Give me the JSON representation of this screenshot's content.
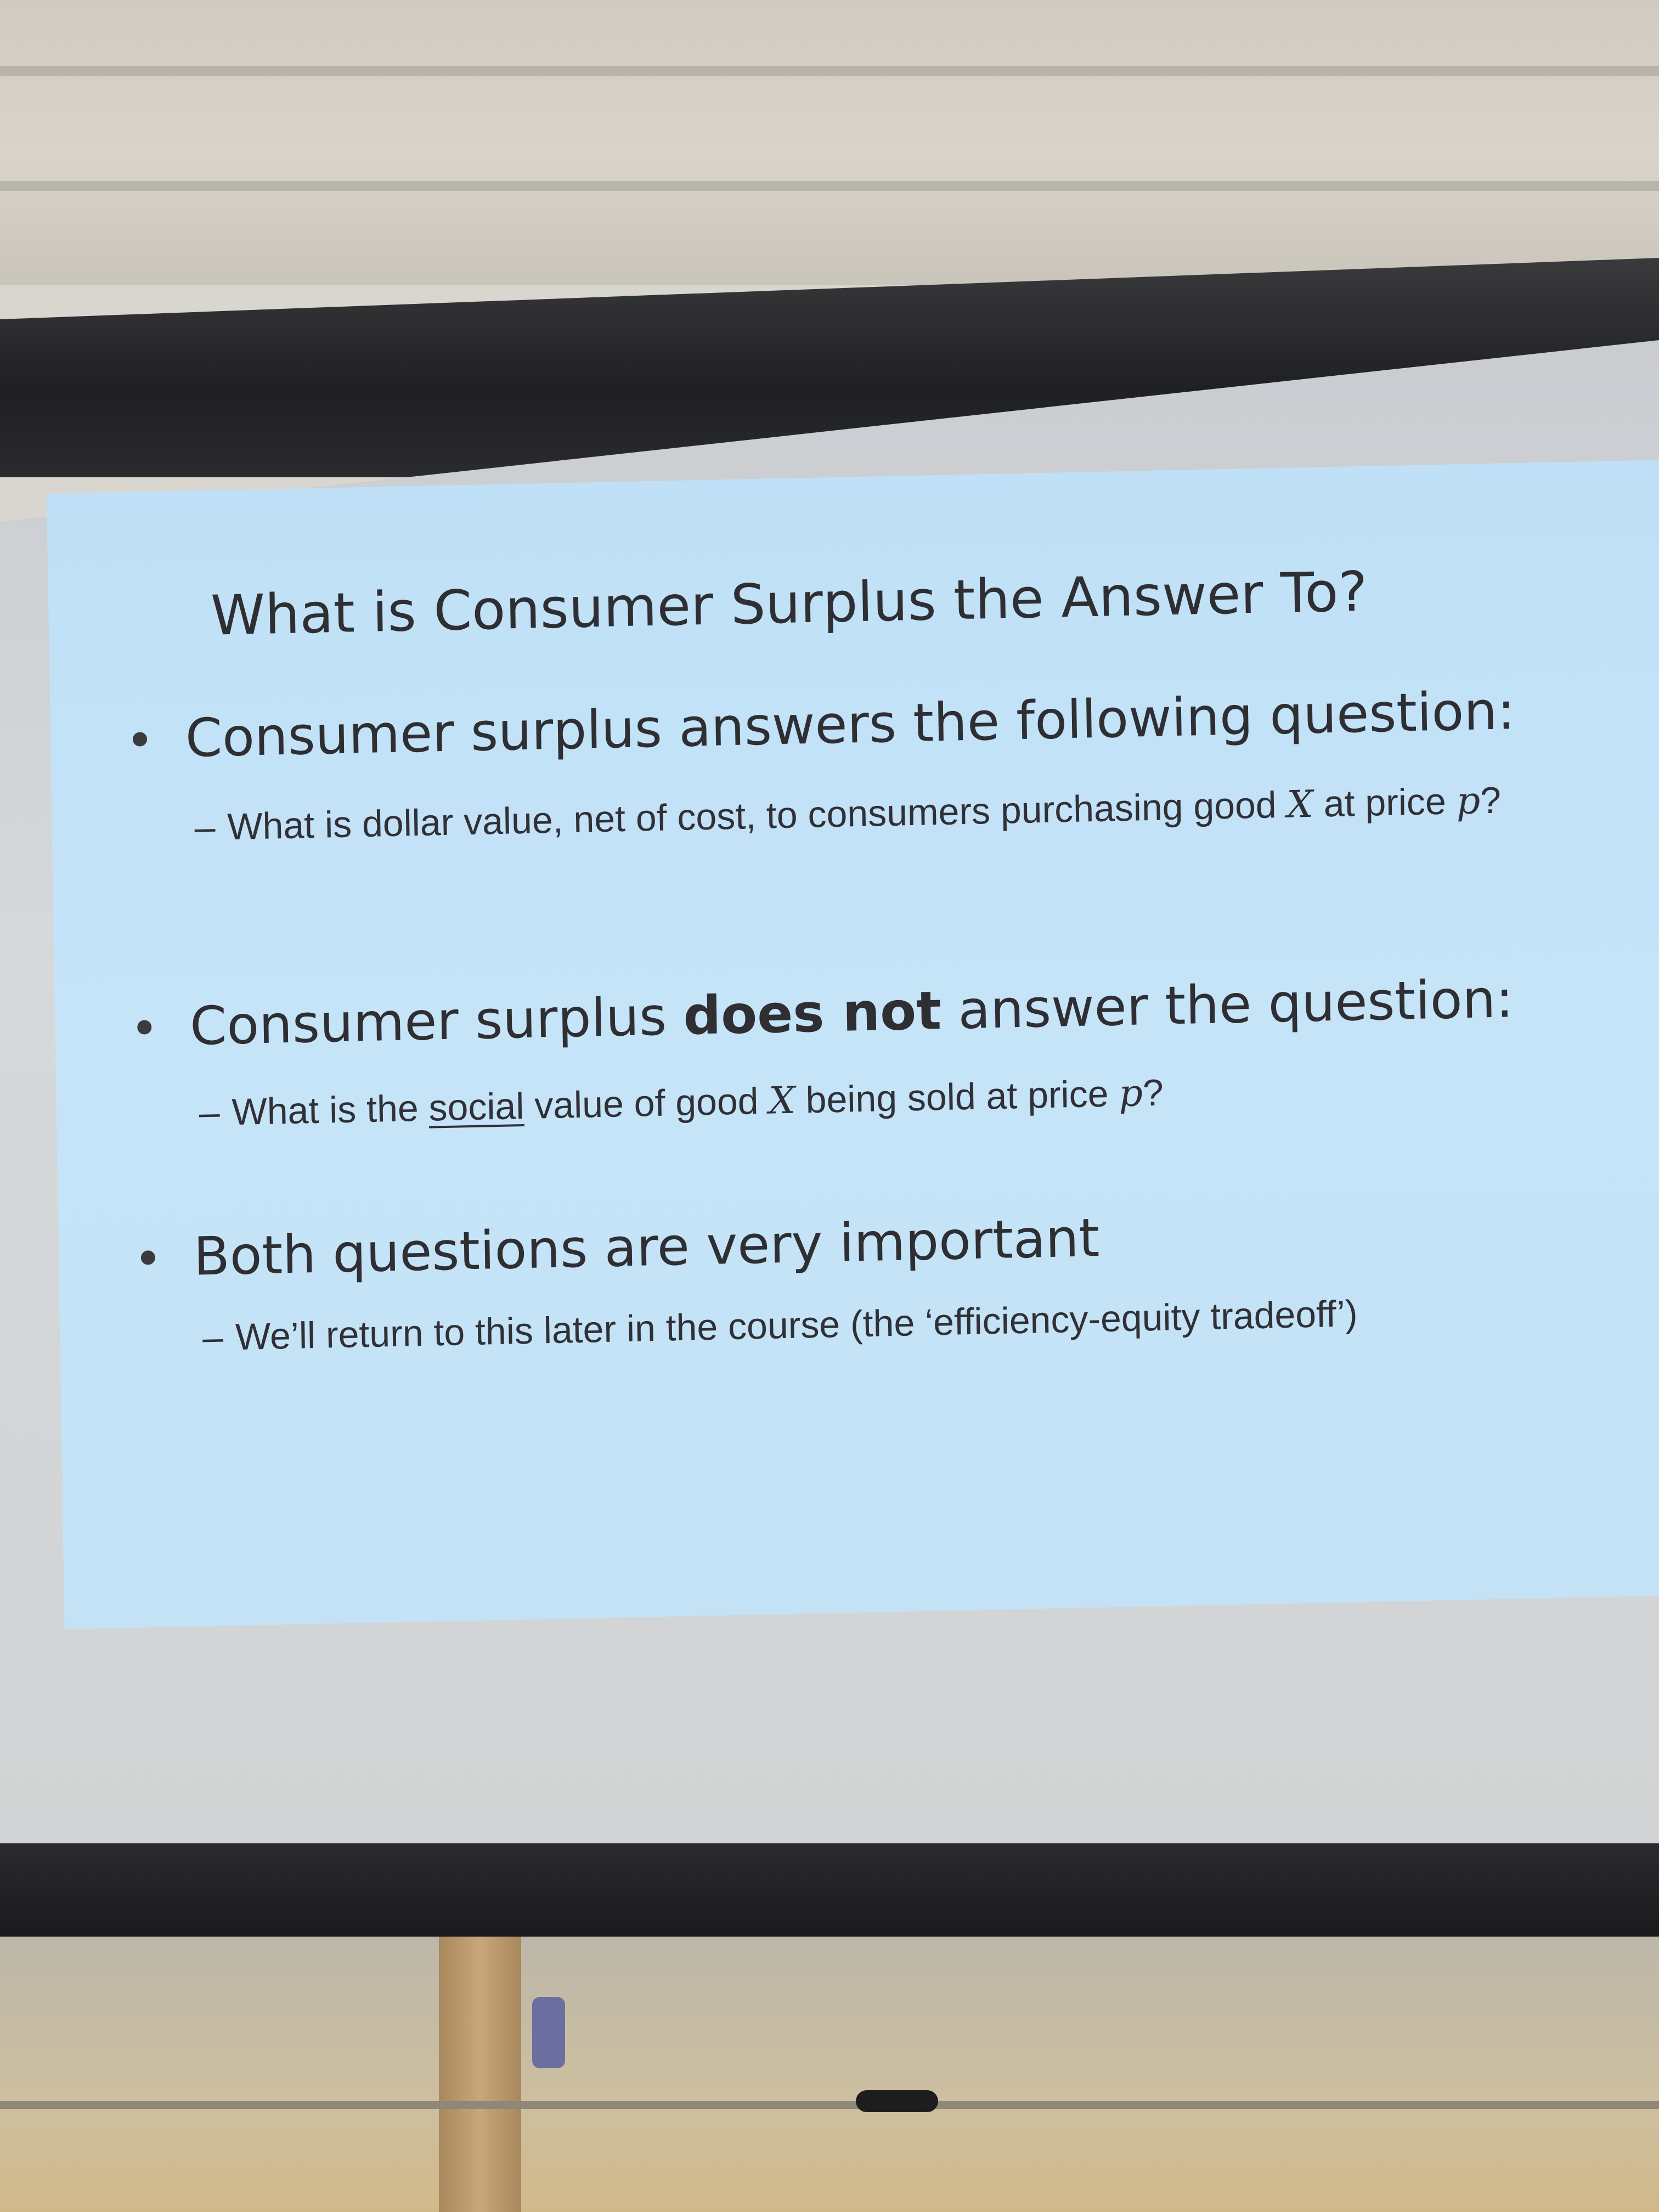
{
  "slide": {
    "title": "What is Consumer Surplus the Answer To?",
    "bullets": [
      {
        "text": "Consumer surplus answers the following question:",
        "sub": {
          "dash": "–",
          "before": "What is dollar value, net of cost, to consumers purchasing good ",
          "var1": "X",
          "middle": " at price ",
          "var2": "p",
          "after": "?"
        }
      },
      {
        "pre": "Consumer surplus ",
        "bold": "does not",
        "post": " answer the question:",
        "sub": {
          "dash": "–",
          "before": "What is the ",
          "underlined": "social",
          "middle1": " value of good ",
          "var1": "X",
          "middle2": " being sold at price ",
          "var2": "p",
          "after": "?"
        }
      },
      {
        "text": "Both questions are very important",
        "sub": {
          "dash": "–",
          "text": "We’ll return to this later in the course (the ‘efficiency-equity tradeoff’)"
        }
      }
    ]
  }
}
